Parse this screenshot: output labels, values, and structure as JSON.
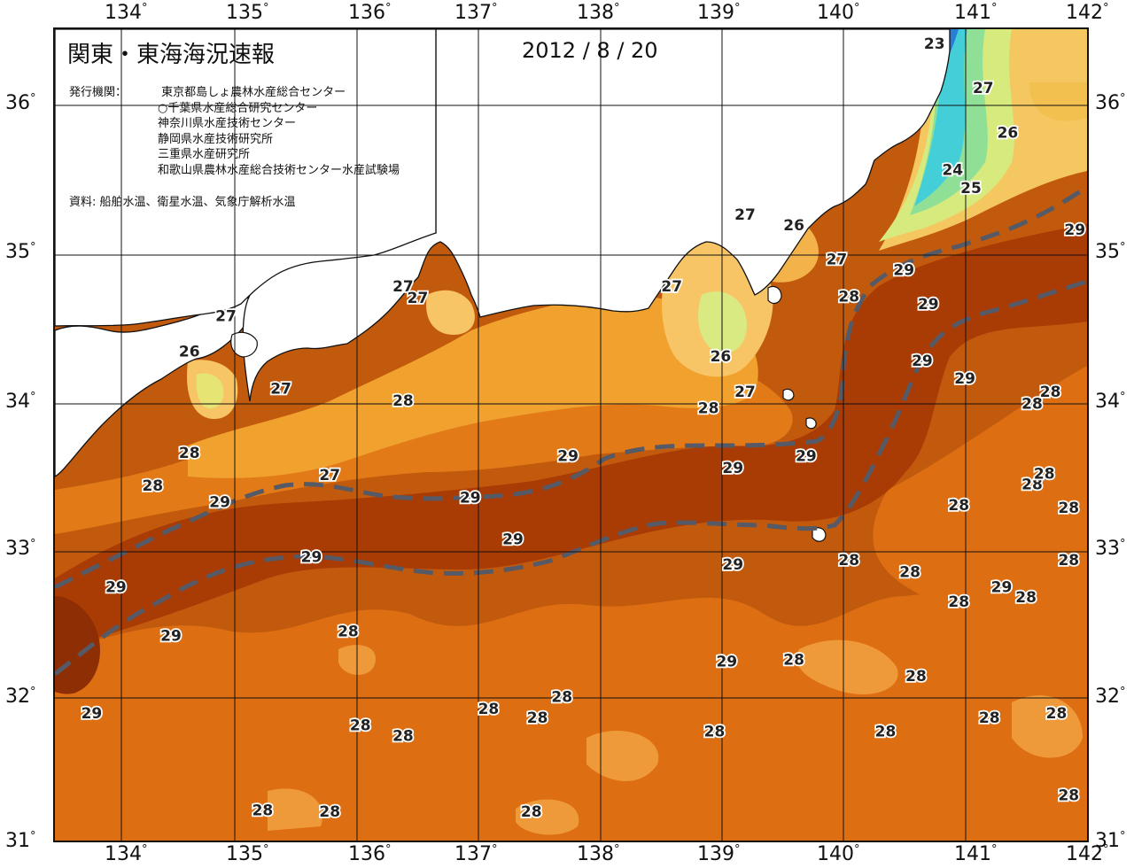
{
  "title": "関東・東海海況速報",
  "date": "2012 / 8 / 20",
  "issuer_label": "発行機関：",
  "issuers": [
    "東京都島しょ農林水産総合センター",
    "○千葉県水産総合研究センター",
    "神奈川県水産技術センター",
    "静岡県水産技術研究所",
    "三重県水産研究所",
    "和歌山県農林水産総合技術センター水産試験場"
  ],
  "source": "資料: 船舶水温、衛星水温、気象庁解析水温",
  "longitudes": [
    "134",
    "135",
    "136",
    "137",
    "138",
    "139",
    "140",
    "141",
    "142"
  ],
  "latitudes": [
    "36",
    "35",
    "34",
    "33",
    "32",
    "31"
  ],
  "degree_symbol": "°",
  "colors": {
    "t29": "#b84406",
    "t28": "#dd6e12",
    "t28_warm": "#c65a0b",
    "t27": "#ee9a2a",
    "t26": "#f7c565",
    "t25": "#f0e67a",
    "t24": "#9fe08a",
    "t23": "#40d0d6",
    "t22": "#2a7cd4",
    "land": "#ffffff",
    "kuroshio_axis": "#555a66"
  },
  "isotherm_labels": [
    {
      "v": "23",
      "lon": 140.75,
      "lat": 36.35
    },
    {
      "v": "27",
      "lon": 141.15,
      "lat": 36.05
    },
    {
      "v": "26",
      "lon": 141.35,
      "lat": 35.75
    },
    {
      "v": "24",
      "lon": 140.9,
      "lat": 35.5
    },
    {
      "v": "25",
      "lon": 141.05,
      "lat": 35.38
    },
    {
      "v": "29",
      "lon": 141.9,
      "lat": 35.1
    },
    {
      "v": "27",
      "lon": 139.2,
      "lat": 35.2
    },
    {
      "v": "26",
      "lon": 139.6,
      "lat": 35.13
    },
    {
      "v": "27",
      "lon": 139.95,
      "lat": 34.9
    },
    {
      "v": "29",
      "lon": 140.5,
      "lat": 34.83
    },
    {
      "v": "28",
      "lon": 140.05,
      "lat": 34.65
    },
    {
      "v": "29",
      "lon": 140.7,
      "lat": 34.6
    },
    {
      "v": "27",
      "lon": 138.6,
      "lat": 34.72
    },
    {
      "v": "26",
      "lon": 139.0,
      "lat": 34.25
    },
    {
      "v": "27",
      "lon": 139.2,
      "lat": 34.01
    },
    {
      "v": "29",
      "lon": 140.65,
      "lat": 34.22
    },
    {
      "v": "29",
      "lon": 141.0,
      "lat": 34.1
    },
    {
      "v": "28",
      "lon": 141.55,
      "lat": 33.93
    },
    {
      "v": "28",
      "lon": 141.7,
      "lat": 34.01
    },
    {
      "v": "28",
      "lon": 138.9,
      "lat": 33.9
    },
    {
      "v": "28",
      "lon": 136.4,
      "lat": 33.95
    },
    {
      "v": "27",
      "lon": 135.4,
      "lat": 34.03
    },
    {
      "v": "27",
      "lon": 134.95,
      "lat": 34.52
    },
    {
      "v": "26",
      "lon": 134.65,
      "lat": 34.28
    },
    {
      "v": "27",
      "lon": 136.4,
      "lat": 34.72
    },
    {
      "v": "27",
      "lon": 136.52,
      "lat": 34.64
    },
    {
      "v": "28",
      "lon": 134.65,
      "lat": 33.6
    },
    {
      "v": "28",
      "lon": 134.35,
      "lat": 33.38
    },
    {
      "v": "27",
      "lon": 135.8,
      "lat": 33.45
    },
    {
      "v": "29",
      "lon": 134.9,
      "lat": 33.27
    },
    {
      "v": "29",
      "lon": 136.95,
      "lat": 33.3
    },
    {
      "v": "29",
      "lon": 137.75,
      "lat": 33.58
    },
    {
      "v": "29",
      "lon": 139.1,
      "lat": 33.5
    },
    {
      "v": "29",
      "lon": 139.7,
      "lat": 33.58
    },
    {
      "v": "28",
      "lon": 141.55,
      "lat": 33.39
    },
    {
      "v": "28",
      "lon": 141.65,
      "lat": 33.46
    },
    {
      "v": "28",
      "lon": 140.95,
      "lat": 33.25
    },
    {
      "v": "28",
      "lon": 141.85,
      "lat": 33.23
    },
    {
      "v": "29",
      "lon": 137.3,
      "lat": 33.02
    },
    {
      "v": "29",
      "lon": 135.65,
      "lat": 32.9
    },
    {
      "v": "28",
      "lon": 140.05,
      "lat": 32.88
    },
    {
      "v": "28",
      "lon": 140.55,
      "lat": 32.8
    },
    {
      "v": "28",
      "lon": 141.85,
      "lat": 32.88
    },
    {
      "v": "29",
      "lon": 139.1,
      "lat": 32.85
    },
    {
      "v": "29",
      "lon": 141.3,
      "lat": 32.7
    },
    {
      "v": "28",
      "lon": 141.5,
      "lat": 32.63
    },
    {
      "v": "28",
      "lon": 140.95,
      "lat": 32.6
    },
    {
      "v": "29",
      "lon": 134.05,
      "lat": 32.7
    },
    {
      "v": "29",
      "lon": 134.5,
      "lat": 32.37
    },
    {
      "v": "28",
      "lon": 135.95,
      "lat": 32.4
    },
    {
      "v": "29",
      "lon": 139.05,
      "lat": 32.2
    },
    {
      "v": "28",
      "lon": 139.6,
      "lat": 32.21
    },
    {
      "v": "28",
      "lon": 140.6,
      "lat": 32.1
    },
    {
      "v": "28",
      "lon": 137.7,
      "lat": 31.96
    },
    {
      "v": "28",
      "lon": 141.75,
      "lat": 31.85
    },
    {
      "v": "29",
      "lon": 133.85,
      "lat": 31.85
    },
    {
      "v": "28",
      "lon": 137.1,
      "lat": 31.88
    },
    {
      "v": "28",
      "lon": 137.5,
      "lat": 31.82
    },
    {
      "v": "28",
      "lon": 141.2,
      "lat": 31.82
    },
    {
      "v": "28",
      "lon": 136.05,
      "lat": 31.77
    },
    {
      "v": "28",
      "lon": 136.4,
      "lat": 31.7
    },
    {
      "v": "28",
      "lon": 138.95,
      "lat": 31.73
    },
    {
      "v": "28",
      "lon": 140.35,
      "lat": 31.73
    },
    {
      "v": "28",
      "lon": 135.25,
      "lat": 31.2
    },
    {
      "v": "28",
      "lon": 135.8,
      "lat": 31.19
    },
    {
      "v": "28",
      "lon": 137.45,
      "lat": 31.19
    },
    {
      "v": "28",
      "lon": 141.85,
      "lat": 31.3
    }
  ]
}
